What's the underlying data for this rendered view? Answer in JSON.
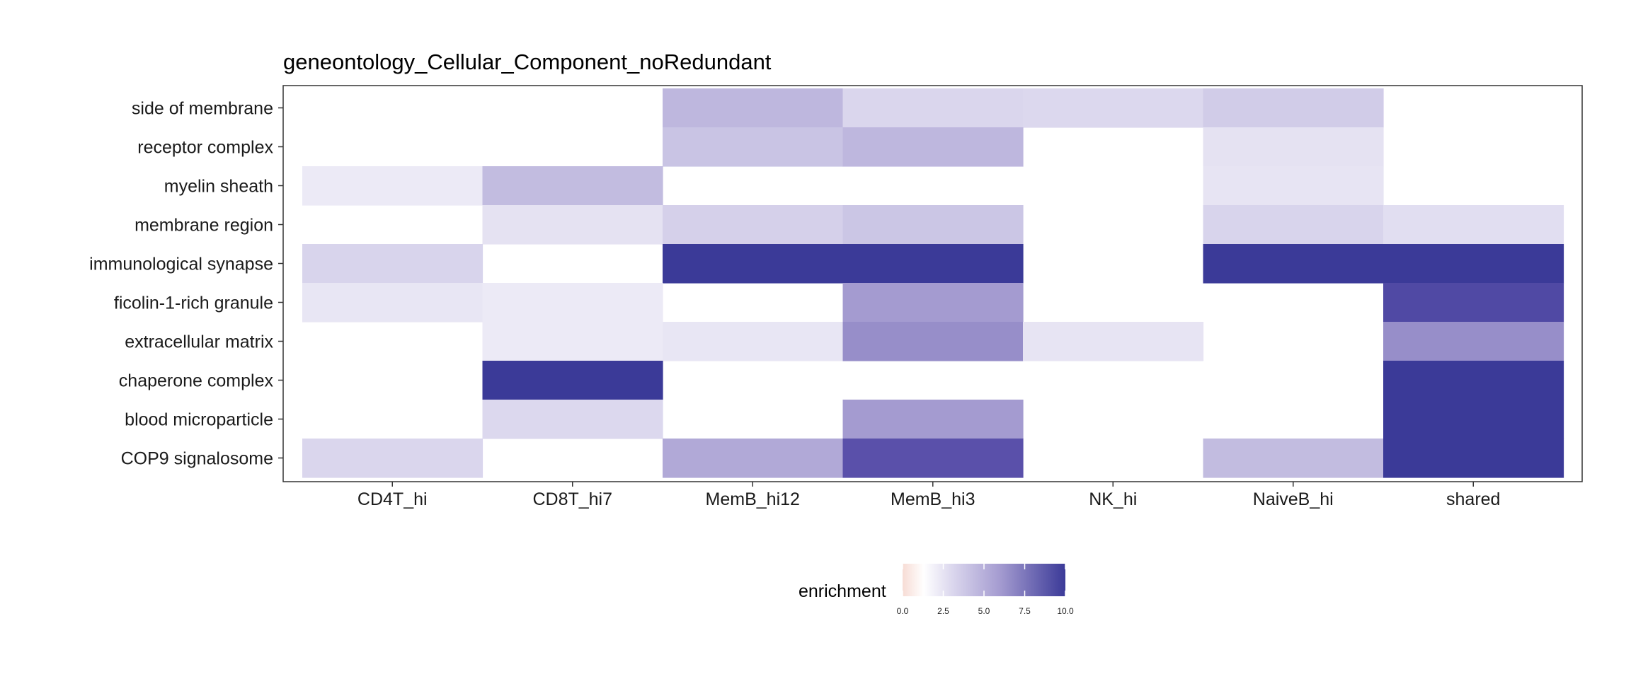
{
  "chart_data": {
    "type": "heatmap",
    "title": "geneontology_Cellular_Component_noRedundant",
    "xlabel": "",
    "ylabel": "",
    "x_categories": [
      "CD4T_hi",
      "CD8T_hi7",
      "MemB_hi12",
      "MemB_hi3",
      "NK_hi",
      "NaiveB_hi",
      "shared"
    ],
    "y_categories": [
      "side of membrane",
      "receptor complex",
      "myelin sheath",
      "membrane region",
      "immunological synapse",
      "ficolin-1-rich granule",
      "extracellular matrix",
      "chaperone complex",
      "blood microparticle",
      "COP9 signalosome"
    ],
    "values": [
      [
        null,
        null,
        3.6,
        2.1,
        2.0,
        2.6,
        null
      ],
      [
        null,
        null,
        3.0,
        3.6,
        null,
        1.5,
        null
      ],
      [
        1.1,
        3.4,
        null,
        null,
        null,
        1.4,
        null
      ],
      [
        null,
        1.5,
        2.4,
        2.9,
        null,
        2.2,
        1.7
      ],
      [
        2.2,
        null,
        10.0,
        10.0,
        null,
        10.0,
        10.0
      ],
      [
        1.3,
        1.1,
        null,
        5.0,
        null,
        null,
        9.0
      ],
      [
        null,
        1.1,
        1.3,
        5.6,
        1.4,
        null,
        5.6
      ],
      [
        null,
        10.0,
        null,
        null,
        null,
        null,
        10.0
      ],
      [
        null,
        2.0,
        null,
        5.0,
        null,
        null,
        10.0
      ],
      [
        2.1,
        null,
        4.3,
        8.5,
        null,
        3.4,
        10.0
      ]
    ],
    "legend": {
      "title": "enrichment",
      "ticks": [
        "0.0",
        "2.5",
        "5.0",
        "7.5",
        "10.0"
      ],
      "range": [
        0,
        10
      ],
      "position": "bottom"
    },
    "colors": {
      "low": "#d44a30",
      "mid": "#ffffff",
      "high": "#3b3a98",
      "panel_border": "#333333"
    },
    "grid": false
  }
}
